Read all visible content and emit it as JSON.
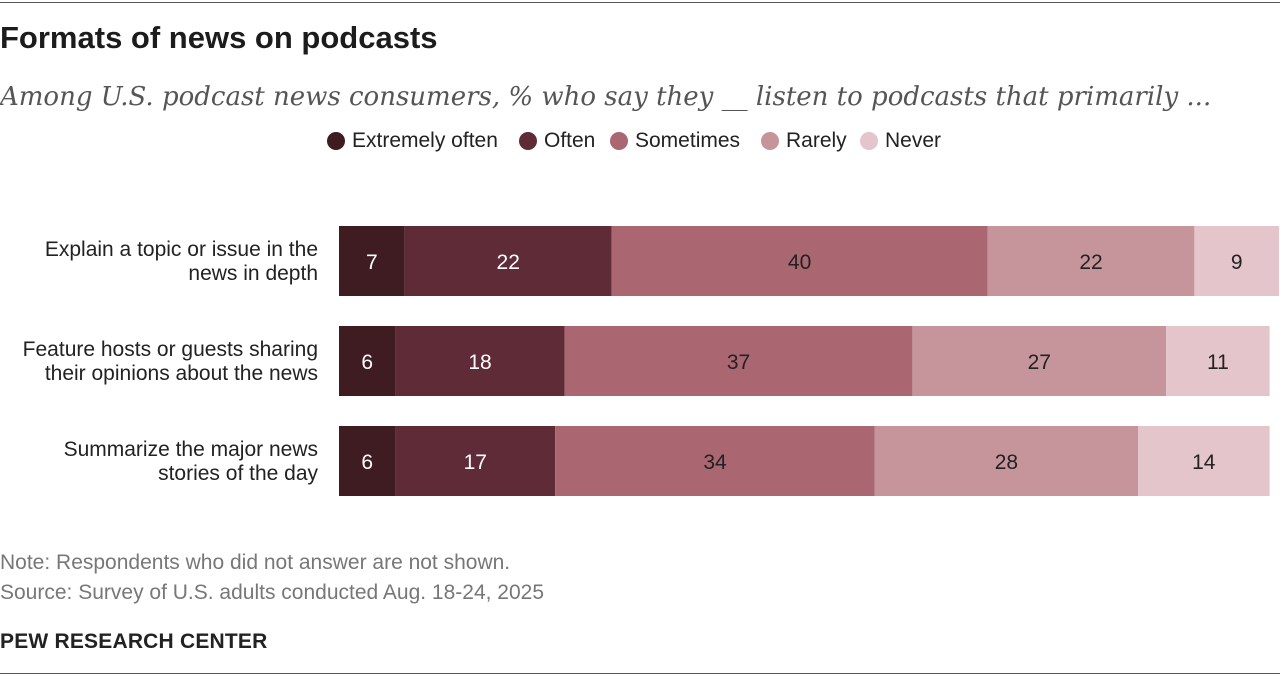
{
  "header": {
    "title": "Formats of news on podcasts",
    "subtitle": "Among U.S. podcast news consumers, % who say they __ listen to podcasts that primarily ..."
  },
  "legend": [
    {
      "label": "Extremely often",
      "color": "#3f1c22"
    },
    {
      "label": "Often",
      "color": "#5e2b37"
    },
    {
      "label": "Sometimes",
      "color": "#aa6671"
    },
    {
      "label": "Rarely",
      "color": "#c5959b"
    },
    {
      "label": "Never",
      "color": "#e4c5cb"
    }
  ],
  "chart_data": {
    "type": "bar",
    "orientation": "horizontal",
    "stacked": true,
    "categories": [
      [
        "Explain a topic or issue in the",
        "news in depth"
      ],
      [
        "Feature hosts or guests sharing",
        "their opinions about the news"
      ],
      [
        "Summarize the major news",
        "stories of the day"
      ]
    ],
    "series": [
      {
        "name": "Extremely often",
        "color": "#3f1c22",
        "values": [
          7,
          6,
          6
        ]
      },
      {
        "name": "Often",
        "color": "#5e2b37",
        "values": [
          22,
          18,
          17
        ]
      },
      {
        "name": "Sometimes",
        "color": "#aa6671",
        "values": [
          40,
          37,
          34
        ]
      },
      {
        "name": "Rarely",
        "color": "#c5959b",
        "values": [
          22,
          27,
          28
        ]
      },
      {
        "name": "Never",
        "color": "#e4c5cb",
        "values": [
          9,
          11,
          14
        ]
      }
    ],
    "xlim": [
      0,
      100
    ],
    "grid": false,
    "legend_position": "top"
  },
  "footer": {
    "note": "Note: Respondents who did not answer are not shown.",
    "source": "Source: Survey of U.S. adults conducted Aug. 18-24, 2025",
    "brand": "PEW RESEARCH CENTER"
  }
}
